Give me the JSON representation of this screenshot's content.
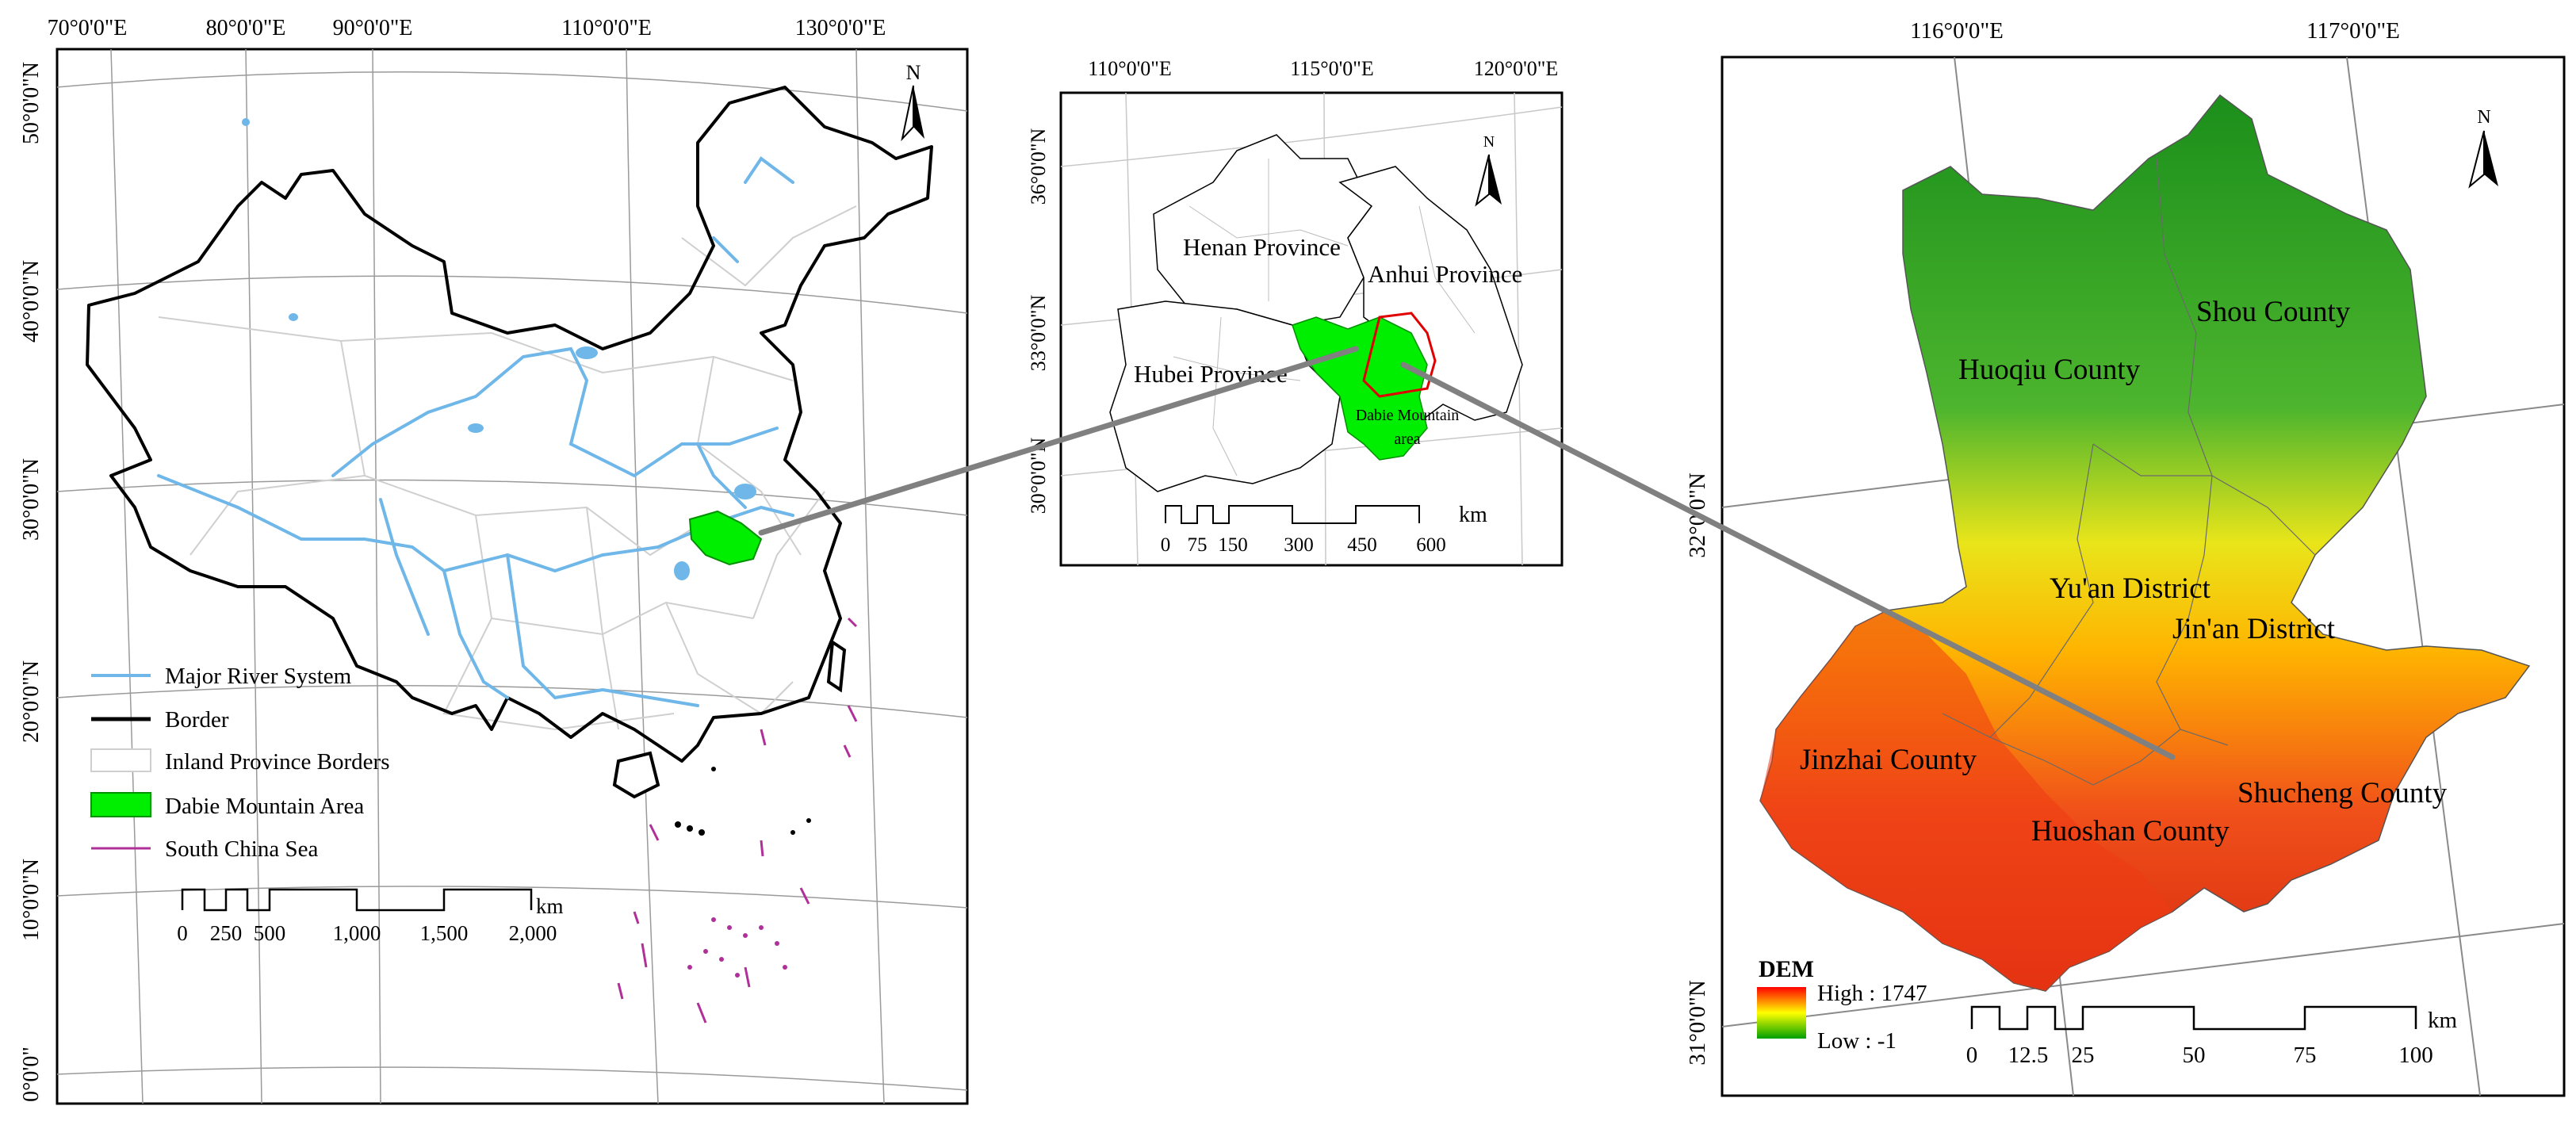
{
  "colors": {
    "river": "#6fb7e9",
    "border": "#000000",
    "province": "#c8c8c8",
    "dabie": "#00ee00",
    "south_china_sea": "#b0309a",
    "connector": "#808080",
    "dem_high": "#ff0000",
    "dem_low": "#00a000"
  },
  "panel1": {
    "top_ticks": [
      "70°0'0\"E",
      "80°0'0\"E",
      "90°0'0\"E",
      "110°0'0\"E",
      "130°0'0\"E"
    ],
    "left_ticks": [
      "50°0'0\"N",
      "40°0'0\"N",
      "30°0'0\"N",
      "20°0'0\"N",
      "10°0'0\"N",
      "0°0'0\""
    ],
    "north": "N",
    "legend": [
      {
        "label": "Major River System"
      },
      {
        "label": "Border"
      },
      {
        "label": "Inland Province Borders"
      },
      {
        "label": "Dabie Mountain Area"
      },
      {
        "label": "South China Sea"
      }
    ],
    "scale": {
      "labels": [
        "0",
        "250",
        "500",
        "1,000",
        "1,500",
        "2,000"
      ],
      "unit": "km"
    }
  },
  "panel2": {
    "top_ticks": [
      "110°0'0\"E",
      "115°0'0\"E",
      "120°0'0\"E"
    ],
    "left_ticks": [
      "36°0'0\"N",
      "33°0'0\"N",
      "30°0'0\"N"
    ],
    "north": "N",
    "provinces": [
      "Henan Province",
      "Anhui Province",
      "Hubei Province"
    ],
    "dabie_label": [
      "Dabie Mountain",
      "area"
    ],
    "scale": {
      "labels": [
        "0",
        "75",
        "150",
        "300",
        "450",
        "600"
      ],
      "unit": "km"
    }
  },
  "panel3": {
    "top_ticks": [
      "116°0'0\"E",
      "117°0'0\"E"
    ],
    "left_ticks": [
      "32°0'0\"N",
      "31°0'0\"N"
    ],
    "north": "N",
    "counties": [
      "Huoqiu County",
      "Shou County",
      "Yu'an District",
      "Jin'an District",
      "Jinzhai County",
      "Huoshan County",
      "Shucheng County"
    ],
    "dem": {
      "title": "DEM",
      "high": "High : 1747",
      "low": "Low : -1"
    },
    "scale": {
      "labels": [
        "0",
        "12.5",
        "25",
        "50",
        "75",
        "100"
      ],
      "unit": "km"
    }
  }
}
